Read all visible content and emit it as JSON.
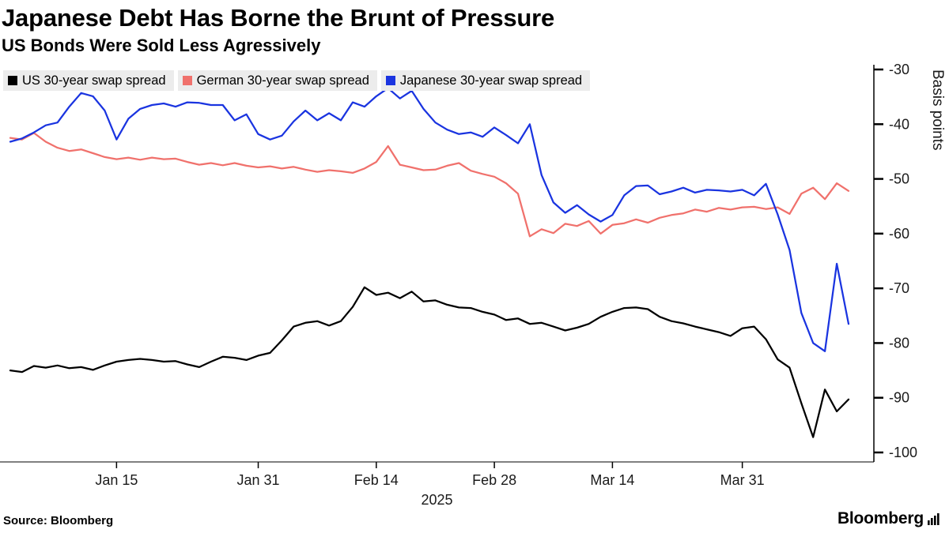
{
  "header": {
    "title": "Japanese Debt Has Borne the Brunt of Pressure",
    "subtitle": "US Bonds Were Sold Less Agressively"
  },
  "footer": {
    "source": "Source: Bloomberg",
    "logo": "Bloomberg"
  },
  "chart_data": {
    "type": "line",
    "title": "Japanese Debt Has Borne the Brunt of Pressure",
    "subtitle": "US Bonds Were Sold Less Agressively",
    "xlabel": "2025",
    "ylabel": "Basis points",
    "ylim": [
      -100,
      -30
    ],
    "y_ticks": [
      -30,
      -40,
      -50,
      -60,
      -70,
      -80,
      -90,
      -100
    ],
    "grid": false,
    "legend_position": "top-left",
    "x_tick_positions": [
      {
        "index": 9,
        "label": "Jan 15"
      },
      {
        "index": 21,
        "label": "Jan 31"
      },
      {
        "index": 31,
        "label": "Feb 14"
      },
      {
        "index": 41,
        "label": "Feb 28"
      },
      {
        "index": 51,
        "label": "Mar 14"
      },
      {
        "index": 62,
        "label": "Mar 31"
      }
    ],
    "x": [
      "Jan 2",
      "Jan 3",
      "Jan 6",
      "Jan 7",
      "Jan 8",
      "Jan 9",
      "Jan 10",
      "Jan 13",
      "Jan 14",
      "Jan 15",
      "Jan 16",
      "Jan 17",
      "Jan 20",
      "Jan 21",
      "Jan 22",
      "Jan 23",
      "Jan 24",
      "Jan 27",
      "Jan 28",
      "Jan 29",
      "Jan 30",
      "Jan 31",
      "Feb 3",
      "Feb 4",
      "Feb 5",
      "Feb 6",
      "Feb 7",
      "Feb 10",
      "Feb 11",
      "Feb 12",
      "Feb 13",
      "Feb 14",
      "Feb 17",
      "Feb 18",
      "Feb 19",
      "Feb 20",
      "Feb 21",
      "Feb 24",
      "Feb 25",
      "Feb 26",
      "Feb 27",
      "Feb 28",
      "Mar 3",
      "Mar 4",
      "Mar 5",
      "Mar 6",
      "Mar 7",
      "Mar 10",
      "Mar 11",
      "Mar 12",
      "Mar 13",
      "Mar 14",
      "Mar 17",
      "Mar 18",
      "Mar 19",
      "Mar 20",
      "Mar 21",
      "Mar 24",
      "Mar 25",
      "Mar 26",
      "Mar 27",
      "Mar 28",
      "Mar 31",
      "Apr 1",
      "Apr 2",
      "Apr 3",
      "Apr 4",
      "Apr 7",
      "Apr 8",
      "Apr 9",
      "Apr 10",
      "Apr 11"
    ],
    "series": [
      {
        "name": "US 30-year swap spread",
        "color": "#000000",
        "values": [
          -85.0,
          -85.3,
          -84.2,
          -84.5,
          -84.1,
          -84.6,
          -84.4,
          -84.9,
          -84.1,
          -83.4,
          -83.1,
          -82.9,
          -83.1,
          -83.4,
          -83.3,
          -83.9,
          -84.4,
          -83.4,
          -82.5,
          -82.7,
          -83.1,
          -82.3,
          -81.8,
          -79.5,
          -77.0,
          -76.3,
          -76.0,
          -76.8,
          -76.0,
          -73.4,
          -69.8,
          -71.2,
          -70.8,
          -71.8,
          -70.6,
          -72.4,
          -72.2,
          -73.0,
          -73.5,
          -73.6,
          -74.3,
          -74.8,
          -75.8,
          -75.5,
          -76.5,
          -76.3,
          -77.0,
          -77.7,
          -77.2,
          -76.5,
          -75.2,
          -74.3,
          -73.6,
          -73.5,
          -73.8,
          -75.2,
          -76.0,
          -76.4,
          -77.0,
          -77.5,
          -78.0,
          -78.7,
          -77.3,
          -77.0,
          -79.3,
          -83.0,
          -84.5,
          -91.0,
          -97.2,
          -88.5,
          -92.5,
          -90.3
        ]
      },
      {
        "name": "German 30-year swap spread",
        "color": "#F0716C",
        "values": [
          -42.5,
          -42.8,
          -41.6,
          -43.2,
          -44.3,
          -44.9,
          -44.6,
          -45.3,
          -46.0,
          -46.4,
          -46.1,
          -46.5,
          -46.1,
          -46.4,
          -46.3,
          -46.9,
          -47.4,
          -47.1,
          -47.5,
          -47.1,
          -47.6,
          -47.9,
          -47.7,
          -48.1,
          -47.8,
          -48.3,
          -48.7,
          -48.4,
          -48.6,
          -48.9,
          -48.1,
          -46.9,
          -44.0,
          -47.4,
          -47.9,
          -48.4,
          -48.3,
          -47.6,
          -47.1,
          -48.5,
          -49.1,
          -49.6,
          -50.8,
          -52.7,
          -60.5,
          -59.2,
          -59.9,
          -58.2,
          -58.6,
          -57.7,
          -60.0,
          -58.4,
          -58.1,
          -57.4,
          -58.0,
          -57.1,
          -56.6,
          -56.3,
          -55.6,
          -56.0,
          -55.3,
          -55.6,
          -55.2,
          -55.1,
          -55.5,
          -55.2,
          -56.4,
          -52.7,
          -51.6,
          -53.7,
          -50.8,
          -52.2
        ]
      },
      {
        "name": "Japanese 30-year swap spread",
        "color": "#1A34E0",
        "values": [
          -43.2,
          -42.6,
          -41.5,
          -40.2,
          -39.7,
          -36.8,
          -34.3,
          -34.9,
          -37.5,
          -42.8,
          -39.0,
          -37.2,
          -36.5,
          -36.2,
          -36.8,
          -36.0,
          -36.1,
          -36.5,
          -36.5,
          -39.3,
          -38.2,
          -41.8,
          -42.8,
          -42.1,
          -39.5,
          -37.5,
          -39.3,
          -38.0,
          -39.3,
          -36.0,
          -36.8,
          -34.9,
          -33.4,
          -35.3,
          -33.9,
          -37.2,
          -39.7,
          -41.0,
          -41.8,
          -41.5,
          -42.3,
          -40.6,
          -42.0,
          -43.5,
          -40.0,
          -49.3,
          -54.3,
          -56.2,
          -54.8,
          -56.5,
          -57.8,
          -56.6,
          -53.0,
          -51.3,
          -51.2,
          -52.8,
          -52.3,
          -51.6,
          -52.5,
          -52.0,
          -52.1,
          -52.3,
          -52.0,
          -53.0,
          -50.9,
          -56.5,
          -63.0,
          -74.5,
          -80.0,
          -81.5,
          -65.5,
          -76.5
        ]
      }
    ]
  }
}
